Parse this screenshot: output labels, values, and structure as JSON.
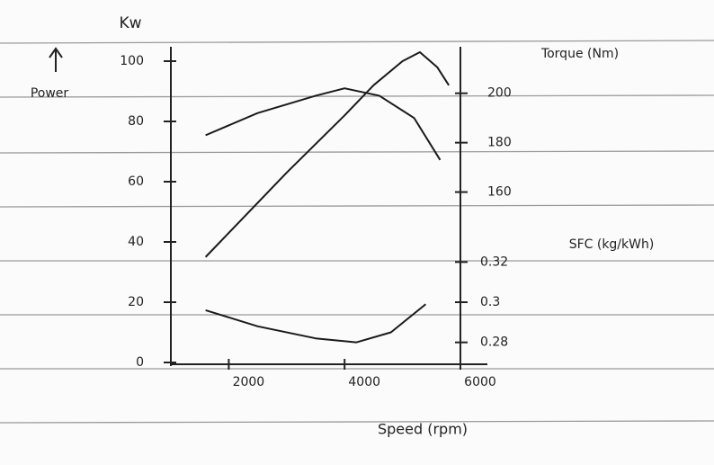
{
  "chart_data": {
    "type": "line",
    "yunit": "Kw",
    "ylabel": "Power",
    "y2label": "Torque (Nm)",
    "y3label": "SFC (kg/kWh)",
    "xlabel": "Speed (rpm)",
    "xlim": [
      1000,
      6000
    ],
    "xticks": [
      2000,
      4000,
      6000
    ],
    "ylim": [
      0,
      100
    ],
    "yticks": [
      0,
      20,
      40,
      60,
      80,
      100
    ],
    "y2lim": [
      91,
      213
    ],
    "y2ticks": [
      160,
      180,
      200
    ],
    "y3lim": [
      0.27,
      0.42
    ],
    "y3ticks": [
      0.28,
      0.3,
      0.32
    ],
    "series": [
      {
        "color": "#1a1a1a",
        "axis": "y",
        "x": [
          1600,
          2000,
          3000,
          4000,
          4500,
          5000,
          5300,
          5600,
          5800
        ],
        "values": [
          35,
          43,
          63,
          82,
          92,
          100,
          103,
          98,
          92
        ]
      },
      {
        "color": "#1a1a1a",
        "axis": "y2",
        "x": [
          1600,
          2500,
          3500,
          4000,
          4600,
          5200,
          5650
        ],
        "values": [
          183,
          192,
          199,
          202,
          199,
          190,
          173
        ]
      },
      {
        "color": "#1a1a1a",
        "axis": "y3",
        "x": [
          1600,
          2500,
          3500,
          4200,
          4800,
          5400
        ],
        "values": [
          0.296,
          0.288,
          0.282,
          0.28,
          0.285,
          0.299
        ]
      }
    ]
  }
}
